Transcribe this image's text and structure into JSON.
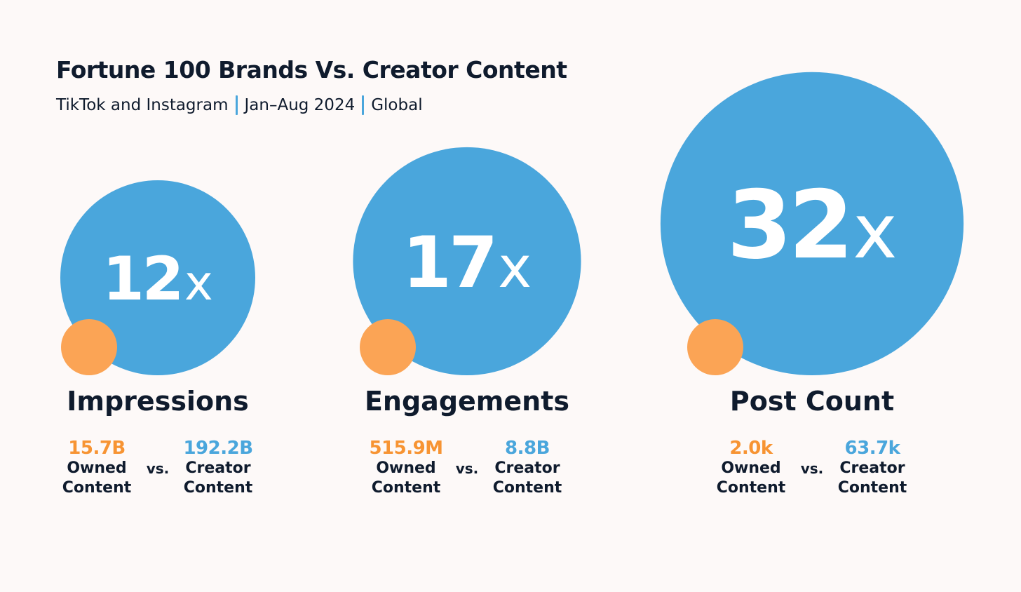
{
  "header": {
    "title": "Fortune 100 Brands Vs. Creator Content",
    "subtitle_parts": [
      "TikTok and Instagram",
      "Jan–Aug 2024",
      "Global"
    ]
  },
  "colors": {
    "owned": "#fba455",
    "creator": "#4aa6dc",
    "owned_text": "#f79433",
    "creator_text": "#4aa6dc",
    "text": "#0f1b2d",
    "background": "#fdf9f8"
  },
  "chart_data": [
    {
      "type": "bubble-comparison",
      "metric": "Impressions",
      "ratio": 12,
      "ratio_number": "12",
      "ratio_suffix": "x",
      "owned": {
        "value": 15.7,
        "display": "15.7B",
        "label_line1": "Owned",
        "label_line2": "Content"
      },
      "creator": {
        "value": 192.2,
        "display": "192.2B",
        "label_line1": "Creator",
        "label_line2": "Content"
      },
      "vs_label": "vs."
    },
    {
      "type": "bubble-comparison",
      "metric": "Engagements",
      "ratio": 17,
      "ratio_number": "17",
      "ratio_suffix": "x",
      "owned": {
        "value": 515.9,
        "display": "515.9M",
        "label_line1": "Owned",
        "label_line2": "Content"
      },
      "creator": {
        "value": 8800,
        "display": "8.8B",
        "label_line1": "Creator",
        "label_line2": "Content"
      },
      "vs_label": "vs."
    },
    {
      "type": "bubble-comparison",
      "metric": "Post Count",
      "ratio": 32,
      "ratio_number": "32",
      "ratio_suffix": "x",
      "owned": {
        "value": 2.0,
        "display": "2.0k",
        "label_line1": "Owned",
        "label_line2": "Content"
      },
      "creator": {
        "value": 63.7,
        "display": "63.7k",
        "label_line1": "Creator",
        "label_line2": "Content"
      },
      "vs_label": "vs."
    }
  ]
}
